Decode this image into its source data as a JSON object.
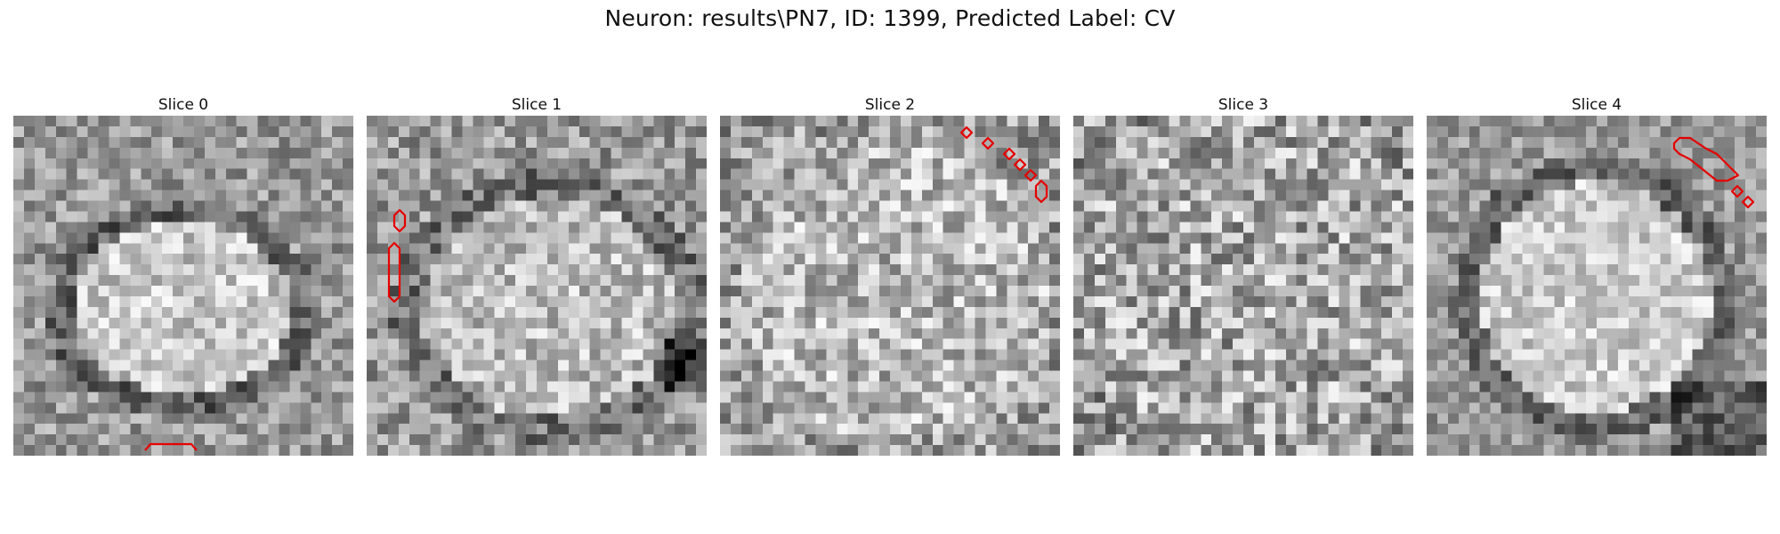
{
  "title": "Neuron: results\\PN7, ID: 1399, Predicted Label: CV",
  "panels": [
    {
      "label": "Slice 0"
    },
    {
      "label": "Slice 1"
    },
    {
      "label": "Slice 2"
    },
    {
      "label": "Slice 3"
    },
    {
      "label": "Slice 4"
    }
  ],
  "colors": {
    "contour": "#e60000",
    "image_colormap": "gray"
  }
}
